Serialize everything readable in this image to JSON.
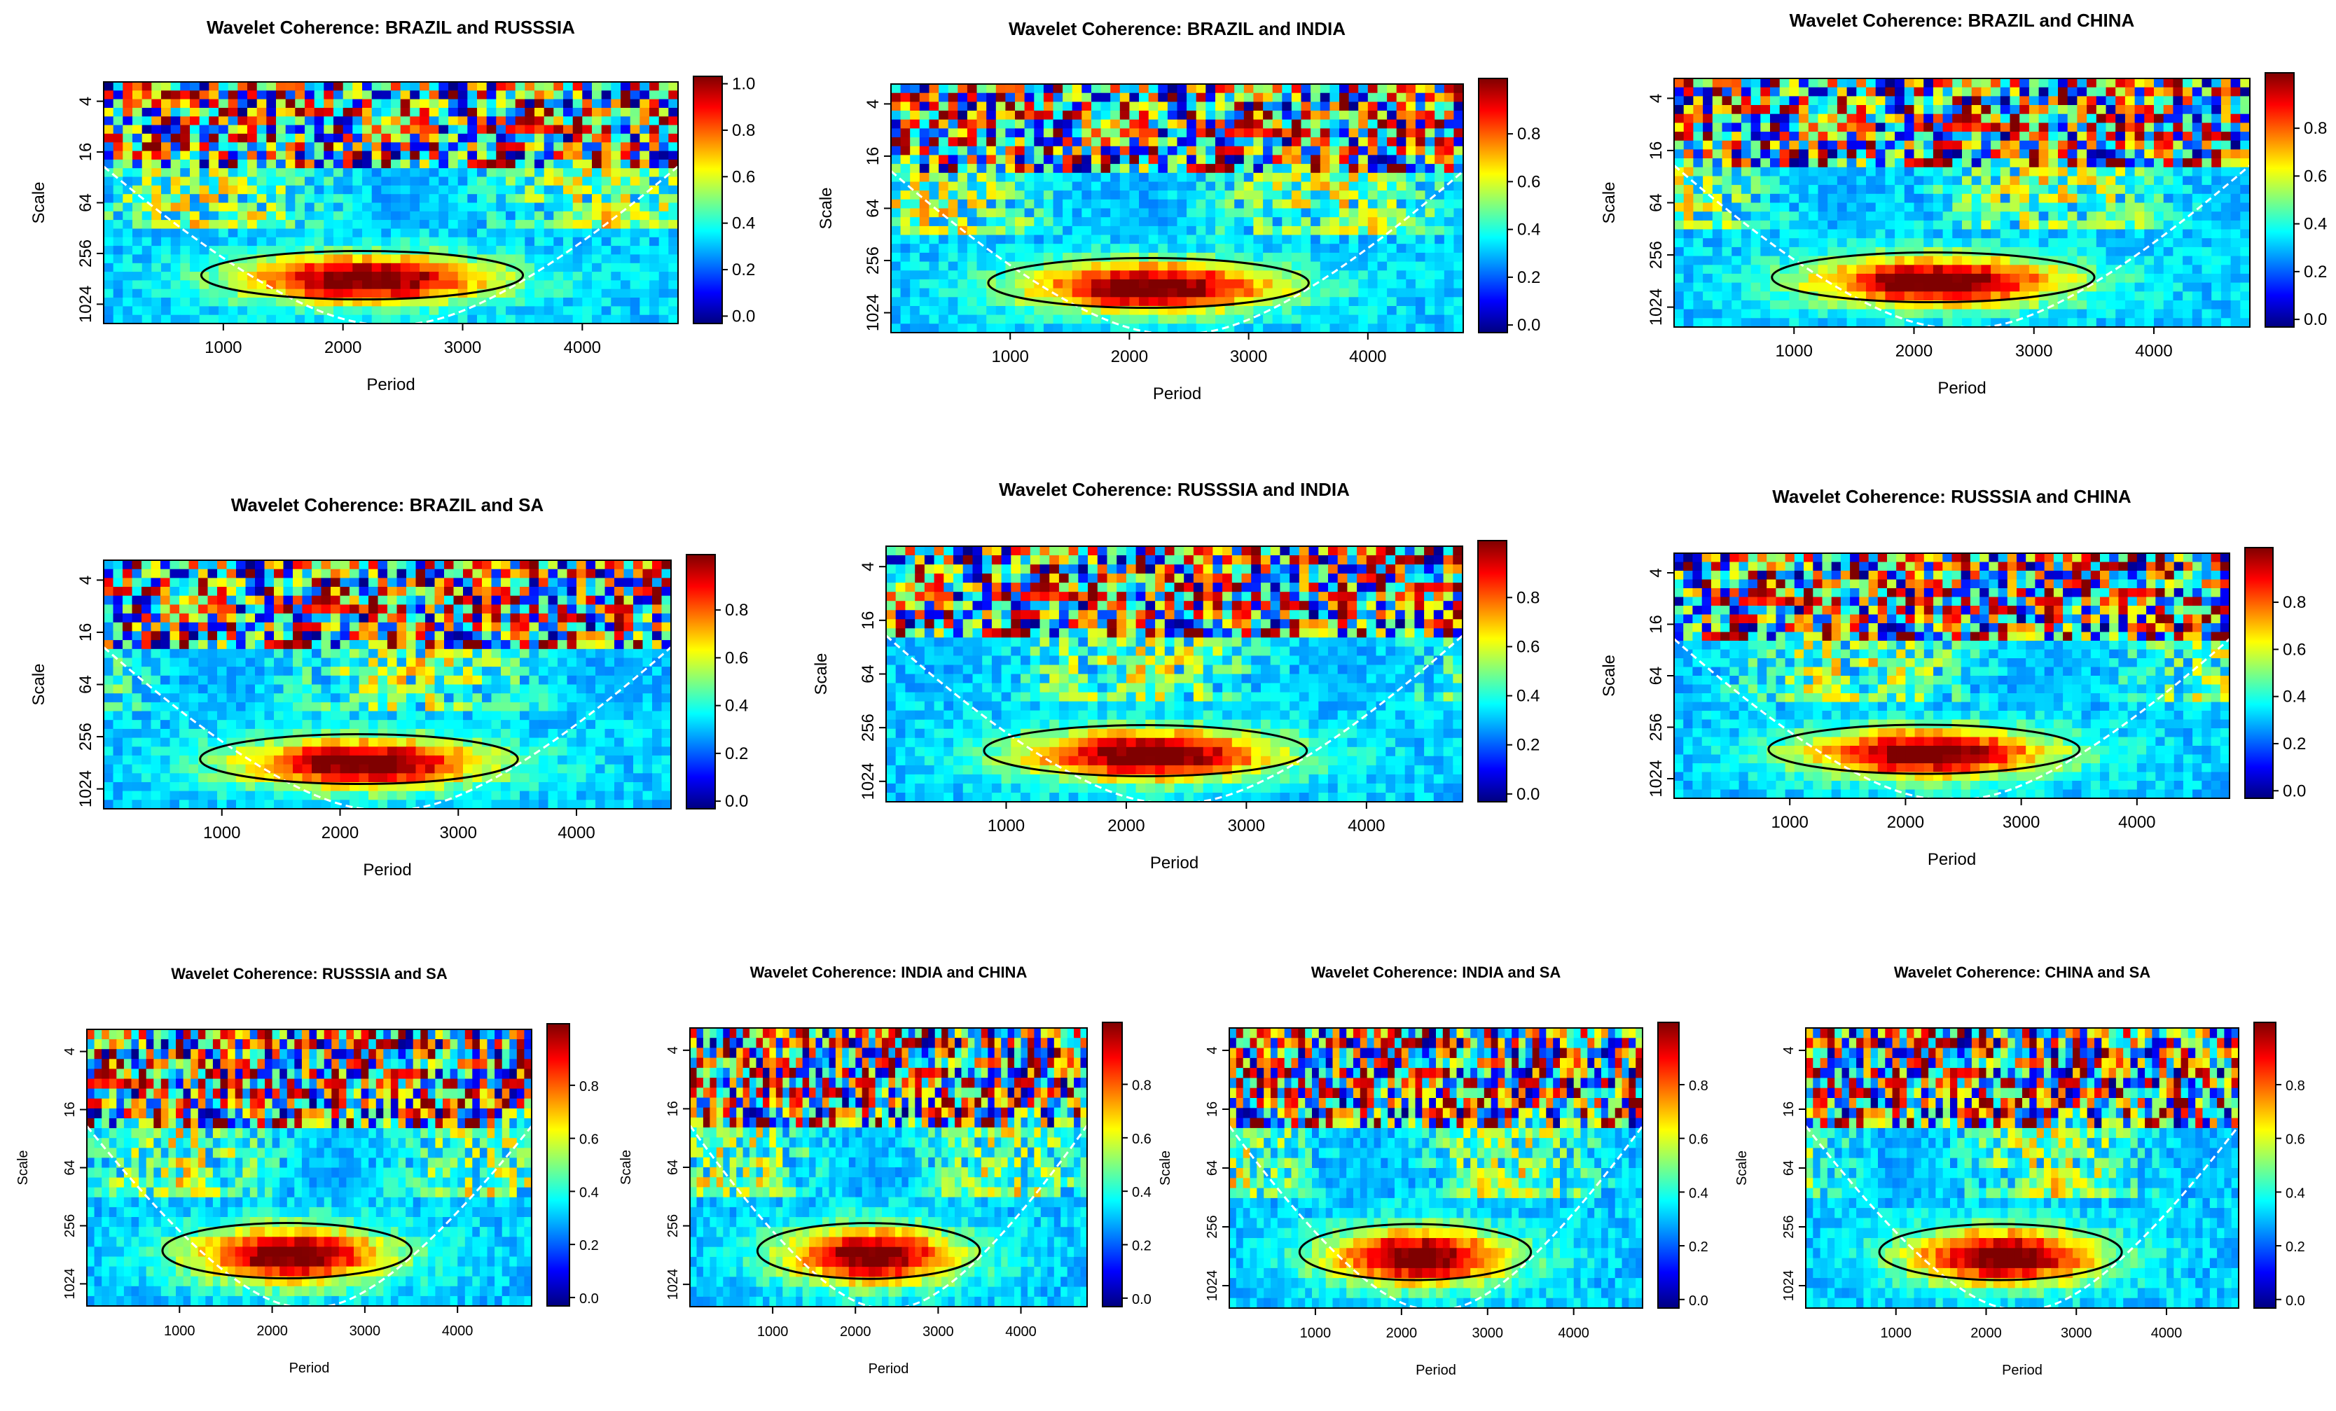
{
  "chart_data": [
    {
      "type": "heatmap",
      "title": "Wavelet Coherence: BRAZIL and RUSSSIA",
      "xlabel": "Period",
      "ylabel": "Scale",
      "x_ticks": [
        "1000",
        "2000",
        "3000",
        "4000"
      ],
      "y_ticks": [
        "4",
        "16",
        "64",
        "256",
        "1024"
      ],
      "colorbar_ticks": [
        "0.0",
        "0.2",
        "0.4",
        "0.6",
        "0.8",
        "1.0"
      ],
      "xlim": [
        0,
        4800
      ],
      "value_range": [
        0,
        1
      ]
    },
    {
      "type": "heatmap",
      "title": "Wavelet Coherence: BRAZIL and INDIA",
      "xlabel": "Period",
      "ylabel": "Scale",
      "x_ticks": [
        "1000",
        "2000",
        "3000",
        "4000"
      ],
      "y_ticks": [
        "4",
        "16",
        "64",
        "256",
        "1024"
      ],
      "colorbar_ticks": [
        "0.0",
        "0.2",
        "0.4",
        "0.6",
        "0.8"
      ],
      "xlim": [
        0,
        4800
      ],
      "value_range": [
        0,
        1
      ]
    },
    {
      "type": "heatmap",
      "title": "Wavelet Coherence: BRAZIL and CHINA",
      "xlabel": "Period",
      "ylabel": "Scale",
      "x_ticks": [
        "1000",
        "2000",
        "3000",
        "4000"
      ],
      "y_ticks": [
        "4",
        "16",
        "64",
        "256",
        "1024"
      ],
      "colorbar_ticks": [
        "0.0",
        "0.2",
        "0.4",
        "0.6",
        "0.8"
      ],
      "xlim": [
        0,
        4800
      ],
      "value_range": [
        0,
        1
      ]
    },
    {
      "type": "heatmap",
      "title": "Wavelet Coherence: BRAZIL and SA",
      "xlabel": "Period",
      "ylabel": "Scale",
      "x_ticks": [
        "1000",
        "2000",
        "3000",
        "4000"
      ],
      "y_ticks": [
        "4",
        "16",
        "64",
        "256",
        "1024"
      ],
      "colorbar_ticks": [
        "0.0",
        "0.2",
        "0.4",
        "0.6",
        "0.8"
      ],
      "xlim": [
        0,
        4800
      ],
      "value_range": [
        0,
        1
      ]
    },
    {
      "type": "heatmap",
      "title": "Wavelet Coherence: RUSSSIA and INDIA",
      "xlabel": "Period",
      "ylabel": "Scale",
      "x_ticks": [
        "1000",
        "2000",
        "3000",
        "4000"
      ],
      "y_ticks": [
        "4",
        "16",
        "64",
        "256",
        "1024"
      ],
      "colorbar_ticks": [
        "0.0",
        "0.2",
        "0.4",
        "0.6",
        "0.8"
      ],
      "xlim": [
        0,
        4800
      ],
      "value_range": [
        0,
        1
      ]
    },
    {
      "type": "heatmap",
      "title": "Wavelet Coherence: RUSSSIA and CHINA",
      "xlabel": "Period",
      "ylabel": "Scale",
      "x_ticks": [
        "1000",
        "2000",
        "3000",
        "4000"
      ],
      "y_ticks": [
        "4",
        "16",
        "64",
        "256",
        "1024"
      ],
      "colorbar_ticks": [
        "0.0",
        "0.2",
        "0.4",
        "0.6",
        "0.8"
      ],
      "xlim": [
        0,
        4800
      ],
      "value_range": [
        0,
        1
      ]
    },
    {
      "type": "heatmap",
      "title": "Wavelet Coherence: RUSSSIA and SA",
      "xlabel": "Period",
      "ylabel": "Scale",
      "x_ticks": [
        "1000",
        "2000",
        "3000",
        "4000"
      ],
      "y_ticks": [
        "4",
        "16",
        "64",
        "256",
        "1024"
      ],
      "colorbar_ticks": [
        "0.0",
        "0.2",
        "0.4",
        "0.6",
        "0.8"
      ],
      "xlim": [
        0,
        4800
      ],
      "value_range": [
        0,
        1
      ]
    },
    {
      "type": "heatmap",
      "title": "Wavelet Coherence: INDIA and CHINA",
      "xlabel": "Period",
      "ylabel": "Scale",
      "x_ticks": [
        "1000",
        "2000",
        "3000",
        "4000"
      ],
      "y_ticks": [
        "4",
        "16",
        "64",
        "256",
        "1024"
      ],
      "colorbar_ticks": [
        "0.0",
        "0.2",
        "0.4",
        "0.6",
        "0.8"
      ],
      "xlim": [
        0,
        4800
      ],
      "value_range": [
        0,
        1
      ]
    },
    {
      "type": "heatmap",
      "title": "Wavelet Coherence: INDIA and SA",
      "xlabel": "Period",
      "ylabel": "Scale",
      "x_ticks": [
        "1000",
        "2000",
        "3000",
        "4000"
      ],
      "y_ticks": [
        "4",
        "16",
        "64",
        "256",
        "1024"
      ],
      "colorbar_ticks": [
        "0.0",
        "0.2",
        "0.4",
        "0.6",
        "0.8"
      ],
      "xlim": [
        0,
        4800
      ],
      "value_range": [
        0,
        1
      ]
    },
    {
      "type": "heatmap",
      "title": "Wavelet Coherence: CHINA and SA",
      "xlabel": "Period",
      "ylabel": "Scale",
      "x_ticks": [
        "1000",
        "2000",
        "3000",
        "4000"
      ],
      "y_ticks": [
        "4",
        "16",
        "64",
        "256",
        "1024"
      ],
      "colorbar_ticks": [
        "0.0",
        "0.2",
        "0.4",
        "0.6",
        "0.8"
      ],
      "xlim": [
        0,
        4800
      ],
      "value_range": [
        0,
        1
      ]
    }
  ],
  "colors": {
    "colormap": [
      "#00007f",
      "#0000ff",
      "#007fff",
      "#00ffff",
      "#7fff7f",
      "#ffff00",
      "#ff7f00",
      "#ff0000",
      "#7f0000"
    ],
    "contour": "#000000",
    "cone": "#ffffff"
  }
}
